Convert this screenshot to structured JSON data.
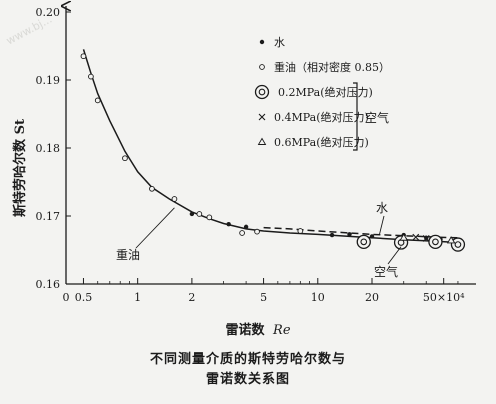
{
  "watermark": "www.bj...",
  "chart_data": {
    "type": "scatter",
    "ylabel": "斯特劳哈尔数 St",
    "xlabel_prefix": "雷诺数",
    "xlabel_symbol": "Re",
    "x_scale": "log",
    "xlim": [
      0.4,
      70
    ],
    "ylim": [
      0.16,
      0.2
    ],
    "y_ticks": [
      "0.16",
      "0.17",
      "0.18",
      "0.19",
      "0.20"
    ],
    "y_tick_values": [
      0.16,
      0.17,
      0.18,
      0.19,
      0.2
    ],
    "x_ticks": [
      {
        "label": "0",
        "value": 0.4
      },
      {
        "label": "0.5",
        "value": 0.5
      },
      {
        "label": "1",
        "value": 1
      },
      {
        "label": "2",
        "value": 2
      },
      {
        "label": "5",
        "value": 5
      },
      {
        "label": "10",
        "value": 10
      },
      {
        "label": "20",
        "value": 20
      },
      {
        "label": "50×10⁴",
        "value": 50
      }
    ],
    "legend": {
      "placement": "top-right",
      "group_label": "空气",
      "entries": [
        {
          "marker": "dot",
          "label": "水"
        },
        {
          "marker": "circle",
          "label": "重油（相对密度 0.85）"
        },
        {
          "marker": "double-circle",
          "label": "0.2MPa(绝对压力)"
        },
        {
          "marker": "cross",
          "label": "0.4MPa(绝对压力)"
        },
        {
          "marker": "triangle",
          "label": "0.6MPa(绝对压力)"
        }
      ]
    },
    "curve_labels": {
      "oil": "重油",
      "water": "水",
      "air": "空气"
    },
    "series": [
      {
        "name": "重油",
        "marker": "circle",
        "points": [
          {
            "x": 0.5,
            "y": 0.1935
          },
          {
            "x": 0.55,
            "y": 0.1905
          },
          {
            "x": 0.6,
            "y": 0.187
          },
          {
            "x": 0.85,
            "y": 0.1785
          },
          {
            "x": 1.2,
            "y": 0.174
          },
          {
            "x": 1.6,
            "y": 0.1725
          },
          {
            "x": 2.2,
            "y": 0.1703
          },
          {
            "x": 2.5,
            "y": 0.1698
          },
          {
            "x": 3.8,
            "y": 0.1675
          },
          {
            "x": 4.6,
            "y": 0.1677
          },
          {
            "x": 8.0,
            "y": 0.1678
          }
        ]
      },
      {
        "name": "水",
        "marker": "dot",
        "points": [
          {
            "x": 2.0,
            "y": 0.1703
          },
          {
            "x": 3.2,
            "y": 0.1688
          },
          {
            "x": 4.0,
            "y": 0.1684
          },
          {
            "x": 12,
            "y": 0.1672
          },
          {
            "x": 15,
            "y": 0.1673
          },
          {
            "x": 20,
            "y": 0.167
          },
          {
            "x": 30,
            "y": 0.1672
          },
          {
            "x": 40,
            "y": 0.1668
          },
          {
            "x": 48,
            "y": 0.1666
          }
        ]
      },
      {
        "name": "0.2MPa(绝对压力)",
        "marker": "double-circle",
        "points": [
          {
            "x": 18,
            "y": 0.1662
          },
          {
            "x": 29,
            "y": 0.1661
          },
          {
            "x": 45,
            "y": 0.1662
          },
          {
            "x": 60,
            "y": 0.1658
          }
        ]
      },
      {
        "name": "0.4MPa(绝对压力)",
        "marker": "cross",
        "points": [
          {
            "x": 35,
            "y": 0.1669
          },
          {
            "x": 40,
            "y": 0.1667
          }
        ]
      },
      {
        "name": "0.6MPa(绝对压力)",
        "marker": "triangle",
        "points": [
          {
            "x": 30,
            "y": 0.1668
          },
          {
            "x": 55,
            "y": 0.1664
          }
        ]
      }
    ],
    "curves": [
      {
        "name": "oil-fit",
        "style": "solid",
        "points": [
          [
            0.5,
            0.1945
          ],
          [
            0.55,
            0.191
          ],
          [
            0.6,
            0.188
          ],
          [
            0.7,
            0.184
          ],
          [
            0.85,
            0.1795
          ],
          [
            1.0,
            0.1765
          ],
          [
            1.2,
            0.1742
          ],
          [
            1.5,
            0.1725
          ],
          [
            2.0,
            0.1706
          ],
          [
            2.5,
            0.1696
          ],
          [
            3.0,
            0.1689
          ],
          [
            4.0,
            0.1681
          ],
          [
            5.0,
            0.1678
          ],
          [
            7.0,
            0.1675
          ],
          [
            10,
            0.1673
          ],
          [
            15,
            0.167
          ],
          [
            20,
            0.1668
          ],
          [
            30,
            0.1665
          ],
          [
            45,
            0.1663
          ],
          [
            60,
            0.1661
          ]
        ]
      },
      {
        "name": "water-fit",
        "style": "dashed",
        "points": [
          [
            5.0,
            0.1683
          ],
          [
            7.0,
            0.1681
          ],
          [
            10,
            0.1678
          ],
          [
            15,
            0.1675
          ],
          [
            20,
            0.1673
          ],
          [
            30,
            0.1671
          ],
          [
            45,
            0.1669
          ],
          [
            60,
            0.1668
          ]
        ]
      }
    ]
  },
  "caption": {
    "line1": "不同测量介质的斯特劳哈尔数与",
    "line2": "雷诺数关系图"
  }
}
